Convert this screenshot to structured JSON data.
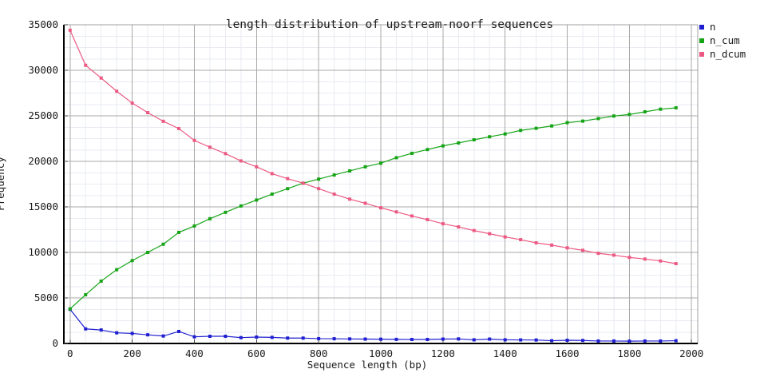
{
  "chart_data": {
    "type": "line",
    "title": "length distribution of upstream-noorf sequences",
    "xlabel": "Sequence length (bp)",
    "ylabel": "Frequency",
    "xlim": [
      -20,
      2020
    ],
    "ylim": [
      0,
      35000
    ],
    "x_ticks": [
      0,
      200,
      400,
      600,
      800,
      1000,
      1200,
      1400,
      1600,
      1800,
      2000
    ],
    "y_ticks": [
      0,
      5000,
      10000,
      15000,
      20000,
      25000,
      30000,
      35000
    ],
    "x_minor_step": 50,
    "y_minor_step": 1250,
    "grid": true,
    "legend_position": "top-right-outside",
    "x": [
      0,
      50,
      100,
      150,
      200,
      250,
      300,
      350,
      400,
      450,
      500,
      550,
      600,
      650,
      700,
      750,
      800,
      850,
      900,
      950,
      1000,
      1050,
      1100,
      1150,
      1200,
      1250,
      1300,
      1350,
      1400,
      1450,
      1500,
      1550,
      1600,
      1650,
      1700,
      1750,
      1800,
      1850,
      1900,
      1950
    ],
    "series": [
      {
        "name": "n",
        "color": "#1f1fd1",
        "values": [
          3750,
          1600,
          1480,
          1170,
          1100,
          950,
          820,
          1320,
          730,
          790,
          790,
          640,
          700,
          670,
          590,
          590,
          530,
          520,
          500,
          480,
          470,
          450,
          440,
          440,
          480,
          500,
          400,
          480,
          400,
          390,
          380,
          300,
          350,
          330,
          270,
          270,
          250,
          270,
          270,
          300
        ]
      },
      {
        "name": "n_cum",
        "color": "#16a416",
        "values": [
          3800,
          5350,
          6850,
          8100,
          9100,
          10000,
          10900,
          12200,
          12900,
          13700,
          14400,
          15100,
          15750,
          16400,
          17000,
          17600,
          18050,
          18500,
          18950,
          19400,
          19800,
          20400,
          20880,
          21300,
          21700,
          22020,
          22370,
          22700,
          23010,
          23400,
          23630,
          23890,
          24250,
          24420,
          24700,
          24980,
          25150,
          25440,
          25730,
          25880
        ]
      },
      {
        "name": "n_dcum",
        "color": "#ec5a83",
        "values": [
          34400,
          30550,
          29150,
          27700,
          26400,
          25350,
          24400,
          23600,
          22300,
          21550,
          20850,
          20050,
          19400,
          18650,
          18100,
          17600,
          17000,
          16400,
          15850,
          15400,
          14900,
          14450,
          14000,
          13600,
          13150,
          12800,
          12400,
          12050,
          11700,
          11400,
          11050,
          10800,
          10500,
          10230,
          9900,
          9700,
          9450,
          9270,
          9060,
          8770
        ]
      }
    ],
    "colors": {
      "major_grid": "#a9a9a9",
      "minor_grid": "#e9ebf1",
      "axis": "#000000",
      "border": "#a0a0a0",
      "text": "#1a1a1a",
      "background": "#ffffff"
    }
  }
}
